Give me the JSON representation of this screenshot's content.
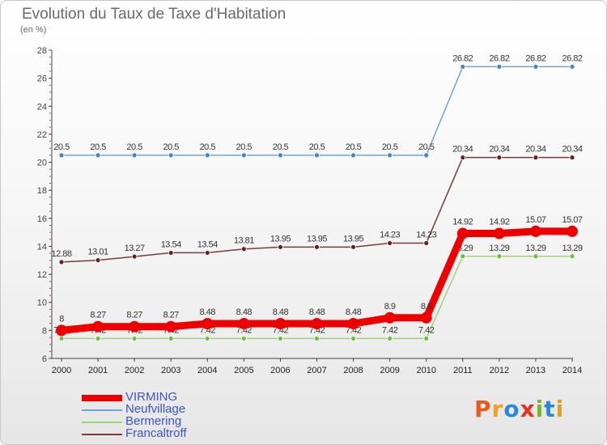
{
  "title": "Evolution du Taux de Taxe d'Habitation",
  "unit_label": "(en %)",
  "logo": {
    "text": "Proxiti",
    "letters": [
      {
        "ch": "P",
        "color": "#e85a1e"
      },
      {
        "ch": "r",
        "color": "#f0a020"
      },
      {
        "ch": "o",
        "color": "#2a8ad8"
      },
      {
        "ch": "x",
        "color": "#e83020"
      },
      {
        "ch": "i",
        "color": "#7ab82a"
      },
      {
        "ch": "t",
        "color": "#2a8ad8"
      },
      {
        "ch": "i",
        "color": "#e0a020"
      }
    ]
  },
  "chart_data": {
    "type": "line",
    "title": "Evolution du Taux de Taxe d'Habitation",
    "ylabel": "(en %)",
    "xlabel": "",
    "x": [
      "2000",
      "2001",
      "2002",
      "2003",
      "2004",
      "2005",
      "2006",
      "2007",
      "2008",
      "2009",
      "2010",
      "2011",
      "2012",
      "2013",
      "2014"
    ],
    "ylim": [
      6,
      28
    ],
    "yticks": [
      6,
      8,
      10,
      12,
      14,
      16,
      18,
      20,
      22,
      24,
      26,
      28
    ],
    "grid": false,
    "legend_position": "bottom-left",
    "series": [
      {
        "name": "Neufvillage",
        "color": "#6fa6d3",
        "point_color": "#3f86c4",
        "emphasis": false,
        "values": [
          20.5,
          20.5,
          20.5,
          20.5,
          20.5,
          20.5,
          20.5,
          20.5,
          20.5,
          20.5,
          20.5,
          26.82,
          26.82,
          26.82,
          26.82
        ],
        "labels": [
          "20.5",
          "20.5",
          "20.5",
          "20.5",
          "20.5",
          "20.5",
          "20.5",
          "20.5",
          "20.5",
          "20.5",
          "20.5",
          "26.82",
          "26.82",
          "26.82",
          "26.82"
        ]
      },
      {
        "name": "Francaltroff",
        "color": "#7a3a3a",
        "point_color": "#6a1f1f",
        "emphasis": false,
        "values": [
          12.88,
          13.01,
          13.27,
          13.54,
          13.54,
          13.81,
          13.95,
          13.95,
          13.95,
          14.23,
          14.23,
          20.34,
          20.34,
          20.34,
          20.34
        ],
        "labels": [
          "12.88",
          "13.01",
          "13.27",
          "13.54",
          "13.54",
          "13.81",
          "13.95",
          "13.95",
          "13.95",
          "14.23",
          "14.23",
          "20.34",
          "20.34",
          "20.34",
          "20.34"
        ]
      },
      {
        "name": "Bermering",
        "color": "#9ed47a",
        "point_color": "#6cbf3c",
        "emphasis": false,
        "values": [
          7.42,
          7.42,
          7.42,
          7.42,
          7.42,
          7.42,
          7.42,
          7.42,
          7.42,
          7.42,
          7.42,
          13.29,
          13.29,
          13.29,
          13.29
        ],
        "labels": [
          "7.42",
          "7.42",
          "7.42",
          "7.42",
          "7.42",
          "7.42",
          "7.42",
          "7.42",
          "7.42",
          "7.42",
          "7.42",
          "13.29",
          "13.29",
          "13.29",
          "13.29"
        ]
      },
      {
        "name": "VIRMING",
        "color": "#ee0000",
        "point_color": "#ee0000",
        "emphasis": true,
        "values": [
          8,
          8.27,
          8.27,
          8.27,
          8.48,
          8.48,
          8.48,
          8.48,
          8.48,
          8.9,
          8.9,
          14.92,
          14.92,
          15.07,
          15.07
        ],
        "labels": [
          "8",
          "8.27",
          "8.27",
          "8.27",
          "8.48",
          "8.48",
          "8.48",
          "8.48",
          "8.48",
          "8.9",
          "8.9",
          "14.92",
          "14.92",
          "15.07",
          "15.07"
        ]
      }
    ],
    "legend": [
      {
        "name": "VIRMING",
        "color": "#ee0000",
        "emphasis": true,
        "text_color": "#3a55c8"
      },
      {
        "name": "Neufvillage",
        "color": "#6fa6d3",
        "emphasis": false,
        "text_color": "#3a55c8"
      },
      {
        "name": "Bermering",
        "color": "#9ed47a",
        "emphasis": false,
        "text_color": "#3a55c8"
      },
      {
        "name": "Francaltroff",
        "color": "#7a3a3a",
        "emphasis": false,
        "text_color": "#3a55c8"
      }
    ]
  }
}
